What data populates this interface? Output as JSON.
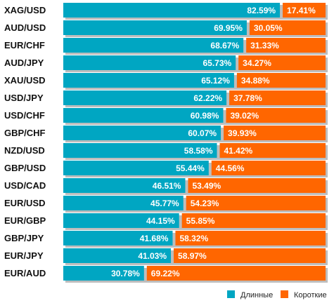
{
  "colors": {
    "long": "#00A6C2",
    "short": "#FF6600",
    "shadow": "#BDBDBD",
    "text": "#111111",
    "value_text": "#FFFFFF"
  },
  "chart_data": {
    "type": "bar",
    "orientation": "horizontal",
    "stacked": true,
    "title": "",
    "categories": [
      "XAG/USD",
      "AUD/USD",
      "EUR/CHF",
      "AUD/JPY",
      "XAU/USD",
      "USD/JPY",
      "USD/CHF",
      "GBP/CHF",
      "NZD/USD",
      "GBP/USD",
      "USD/CAD",
      "EUR/USD",
      "EUR/GBP",
      "GBP/JPY",
      "EUR/JPY",
      "EUR/AUD"
    ],
    "series": [
      {
        "name": "Длинные",
        "values": [
          82.59,
          69.95,
          68.67,
          65.73,
          65.12,
          62.22,
          60.98,
          60.07,
          58.58,
          55.44,
          46.51,
          45.77,
          44.15,
          41.68,
          41.03,
          30.78
        ]
      },
      {
        "name": "Короткие",
        "values": [
          17.41,
          30.05,
          31.33,
          34.27,
          34.88,
          37.78,
          39.02,
          39.93,
          41.42,
          44.56,
          53.49,
          54.23,
          55.85,
          58.32,
          58.97,
          69.22
        ]
      }
    ],
    "value_labels": {
      "long": [
        "82.59%",
        "69.95%",
        "68.67%",
        "65.73%",
        "65.12%",
        "62.22%",
        "60.98%",
        "60.07%",
        "58.58%",
        "55.44%",
        "46.51%",
        "45.77%",
        "44.15%",
        "41.68%",
        "41.03%",
        "30.78%"
      ],
      "short": [
        "17.41%",
        "30.05%",
        "31.33%",
        "34.27%",
        "34.88%",
        "37.78%",
        "39.02%",
        "39.93%",
        "41.42%",
        "44.56%",
        "53.49%",
        "54.23%",
        "55.85%",
        "58.32%",
        "58.97%",
        "69.22%"
      ]
    },
    "xlim": [
      0,
      100
    ],
    "grid": false,
    "legend_position": "bottom-right"
  }
}
